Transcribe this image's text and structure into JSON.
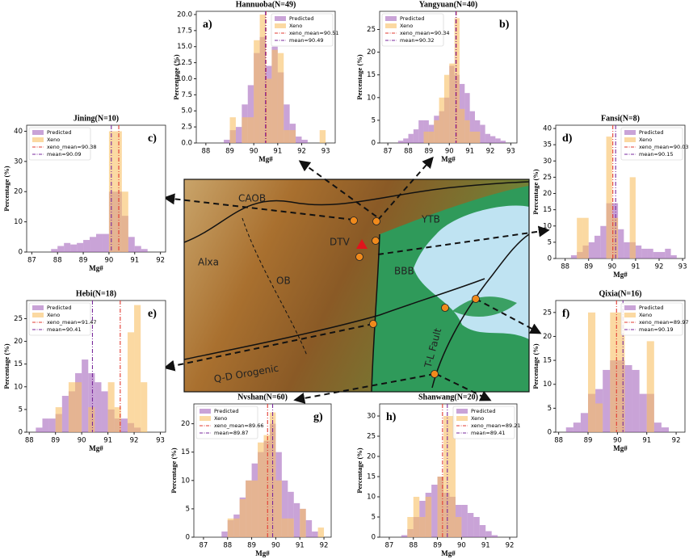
{
  "chart_data": [
    {
      "type": "histogram",
      "title": "Hannuoba(N=49)",
      "panel_label": "a)",
      "xlabel": "Mg#",
      "ylabel": "Percentage (%)",
      "legend": "upper right",
      "bins": [
        88.75,
        89.0,
        89.25,
        89.5,
        89.75,
        90.0,
        90.25,
        90.5,
        90.75,
        91.0,
        91.25,
        91.5,
        91.75,
        92.0,
        92.25,
        92.5,
        92.75,
        93.0,
        93.25
      ],
      "series": [
        {
          "name": "Predicted",
          "color": "#a565bd",
          "values": [
            0.5,
            2,
            2.5,
            6,
            9,
            14,
            16.5,
            12,
            15,
            11,
            6,
            3,
            1,
            0.5,
            0,
            0,
            0,
            0
          ]
        },
        {
          "name": "Xeno",
          "color": "#f8c064",
          "values": [
            0,
            4,
            0,
            4,
            4,
            16,
            20,
            10,
            14.5,
            14,
            2,
            2,
            0,
            0,
            0,
            0,
            2,
            0
          ]
        }
      ],
      "reference_lines": [
        {
          "name": "xeno_mean=90.51",
          "value": 90.51,
          "color": "#e23b32"
        },
        {
          "name": "mean=90.49",
          "value": 90.49,
          "color": "#7a2a9c"
        }
      ],
      "xlim": [
        87.6,
        93.4
      ],
      "xticks": [
        88,
        89,
        90,
        91,
        92,
        93
      ],
      "ylim": [
        0,
        20.5
      ],
      "yticks": [
        {
          "value": 0,
          "label": "0.0"
        },
        2.5,
        {
          "value": 5,
          "label": "5.0"
        },
        7.5,
        {
          "value": 10,
          "label": "10.0"
        },
        12.5,
        {
          "value": 15,
          "label": "15.0"
        },
        17.5,
        {
          "value": 20,
          "label": "20.0"
        }
      ]
    },
    {
      "type": "histogram",
      "title": "Yangyuan(N=40)",
      "panel_label": "b)",
      "xlabel": "Mg#",
      "ylabel": "Percentage (%)",
      "legend": "upper left",
      "bins": [
        87.5,
        87.75,
        88.0,
        88.25,
        88.5,
        88.75,
        89.0,
        89.25,
        89.5,
        89.75,
        90.0,
        90.25,
        90.5,
        90.75,
        91.0,
        91.25,
        91.5,
        91.75,
        92.0,
        92.25,
        92.5,
        92.75,
        93.0
      ],
      "series": [
        {
          "name": "Predicted",
          "color": "#a565bd",
          "values": [
            0.5,
            1,
            2,
            3,
            5,
            5,
            4,
            6,
            7,
            10,
            17,
            15,
            13,
            11,
            7,
            5,
            4,
            2,
            1.5,
            1,
            0.5,
            0
          ]
        },
        {
          "name": "Xeno",
          "color": "#f8c064",
          "values": [
            0,
            0,
            0,
            0,
            0,
            2.5,
            2.5,
            5,
            10,
            15,
            17.5,
            27.5,
            7.5,
            5,
            2.5,
            2.5,
            0,
            0,
            0,
            0,
            0,
            0
          ]
        }
      ],
      "reference_lines": [
        {
          "name": "xeno_mean=90.34",
          "value": 90.34,
          "color": "#e23b32"
        },
        {
          "name": "mean=90.32",
          "value": 90.32,
          "color": "#7a2a9c"
        }
      ],
      "xlim": [
        86.6,
        93.3
      ],
      "xticks": [
        87,
        88,
        89,
        90,
        91,
        92,
        93
      ],
      "ylim": [
        0,
        29
      ],
      "yticks": [
        0,
        5,
        10,
        15,
        20,
        25
      ]
    },
    {
      "type": "histogram",
      "title": "Jining(N=10)",
      "panel_label": "c)",
      "xlabel": "Mg#",
      "ylabel": "Percentage (%)",
      "legend": "upper left",
      "bins": [
        87.75,
        88.0,
        88.25,
        88.5,
        88.75,
        89.0,
        89.25,
        89.5,
        89.75,
        90.0,
        90.25,
        90.5,
        90.75,
        91.0,
        91.25,
        91.5
      ],
      "series": [
        {
          "name": "Predicted",
          "color": "#a565bd",
          "values": [
            1,
            2,
            3,
            2.5,
            3,
            4,
            5,
            6,
            6,
            20,
            20,
            12,
            5,
            2,
            1
          ]
        },
        {
          "name": "Xeno",
          "color": "#f8c064",
          "values": [
            0,
            0,
            0,
            0,
            0,
            0,
            0,
            0,
            0,
            40,
            40,
            20,
            0,
            0,
            0
          ]
        }
      ],
      "reference_lines": [
        {
          "name": "xeno_mean=90.38",
          "value": 90.38,
          "color": "#e23b32"
        },
        {
          "name": "mean=90.09",
          "value": 90.09,
          "color": "#7a2a9c"
        }
      ],
      "xlim": [
        86.8,
        92.2
      ],
      "xticks": [
        87,
        88,
        89,
        90,
        91,
        92
      ],
      "ylim": [
        0,
        42
      ],
      "yticks": [
        0,
        10,
        20,
        30,
        40
      ]
    },
    {
      "type": "histogram",
      "title": "Fansi(N=8)",
      "panel_label": "d)",
      "xlabel": "Mg#",
      "ylabel": "Percentage (%)",
      "legend": "upper right",
      "bins": [
        88.25,
        88.5,
        88.75,
        89.0,
        89.25,
        89.5,
        89.75,
        90.0,
        90.25,
        90.5,
        90.75,
        91.0,
        91.25,
        91.5,
        91.75,
        92.0,
        92.25,
        92.5,
        92.75
      ],
      "series": [
        {
          "name": "Predicted",
          "color": "#a565bd",
          "values": [
            1,
            2,
            4,
            5,
            7,
            10,
            17,
            17,
            9,
            5,
            5,
            4,
            3,
            3,
            2,
            2,
            3,
            1
          ]
        },
        {
          "name": "Xeno",
          "color": "#f8c064",
          "values": [
            0,
            12.5,
            12.5,
            0,
            0,
            0,
            37.5,
            12.5,
            0,
            0,
            25,
            0,
            0,
            0,
            0,
            0,
            0,
            0
          ]
        }
      ],
      "reference_lines": [
        {
          "name": "xeno_mean=90.03",
          "value": 90.03,
          "color": "#e23b32"
        },
        {
          "name": "mean=90.15",
          "value": 90.15,
          "color": "#7a2a9c"
        }
      ],
      "xlim": [
        87.6,
        93.1
      ],
      "xticks": [
        88,
        89,
        90,
        91,
        92,
        93
      ],
      "ylim": [
        0,
        41
      ],
      "yticks": [
        0,
        5,
        10,
        15,
        20,
        25,
        30,
        35,
        40
      ]
    },
    {
      "type": "histogram",
      "title": "Hebi(N=18)",
      "panel_label": "e)",
      "xlabel": "Mg#",
      "ylabel": "Percentage (%)",
      "legend": "upper left",
      "bins": [
        88.25,
        88.5,
        88.75,
        89.0,
        89.25,
        89.5,
        89.75,
        90.0,
        90.25,
        90.5,
        90.75,
        91.0,
        91.25,
        91.5,
        91.75,
        92.0,
        92.25,
        92.5
      ],
      "series": [
        {
          "name": "Predicted",
          "color": "#a565bd",
          "values": [
            1,
            3,
            3,
            4,
            8,
            9,
            13,
            16,
            13,
            11,
            9,
            5,
            3,
            3,
            2,
            1,
            0
          ]
        },
        {
          "name": "Xeno",
          "color": "#f8c064",
          "values": [
            0,
            0,
            0,
            5.5,
            0,
            11,
            11,
            0,
            5.5,
            0,
            0,
            11,
            5.5,
            0,
            22,
            28,
            11
          ]
        }
      ],
      "reference_lines": [
        {
          "name": "xeno_mean=91.47",
          "value": 91.47,
          "color": "#e23b32"
        },
        {
          "name": "mean=90.41",
          "value": 90.41,
          "color": "#7a2a9c"
        }
      ],
      "xlim": [
        87.9,
        93.2
      ],
      "xticks": [
        88,
        89,
        90,
        91,
        92,
        93
      ],
      "ylim": [
        0,
        29
      ],
      "yticks": [
        0,
        5,
        10,
        15,
        20,
        25
      ]
    },
    {
      "type": "histogram",
      "title": "Qixia(N=16)",
      "panel_label": "f)",
      "xlabel": "Mg#",
      "ylabel": "Percentage (%)",
      "legend": "upper right",
      "bins": [
        88.25,
        88.5,
        88.75,
        89.0,
        89.25,
        89.5,
        89.75,
        90.0,
        90.25,
        90.5,
        90.75,
        91.0,
        91.25,
        91.5,
        91.75
      ],
      "series": [
        {
          "name": "Predicted",
          "color": "#a565bd",
          "values": [
            1,
            2,
            4,
            8,
            9,
            13,
            15,
            15,
            14,
            13,
            8,
            8,
            2,
            1
          ]
        },
        {
          "name": "Xeno",
          "color": "#f8c064",
          "values": [
            0,
            0,
            0,
            25,
            6,
            0,
            25,
            25,
            0,
            0,
            0,
            19,
            0,
            0
          ]
        }
      ],
      "reference_lines": [
        {
          "name": "xeno_mean=89.97",
          "value": 89.97,
          "color": "#e23b32"
        },
        {
          "name": "mean=90.19",
          "value": 90.19,
          "color": "#7a2a9c"
        }
      ],
      "xlim": [
        87.9,
        92.3
      ],
      "xticks": [
        88,
        89,
        90,
        91,
        92
      ],
      "ylim": [
        0,
        27.5
      ],
      "yticks": [
        0,
        5,
        10,
        15,
        20,
        25
      ]
    },
    {
      "type": "histogram",
      "title": "Nvshan(N=60)",
      "panel_label": "g)",
      "xlabel": "Mg#",
      "ylabel": "Percentage (%)",
      "legend": "upper left",
      "bins": [
        87.75,
        88.0,
        88.25,
        88.5,
        88.75,
        89.0,
        89.25,
        89.5,
        89.75,
        90.0,
        90.25,
        90.5,
        90.75,
        91.0,
        91.25,
        91.5,
        91.75,
        92.0
      ],
      "series": [
        {
          "name": "Predicted",
          "color": "#a565bd",
          "values": [
            1,
            3,
            4,
            7,
            10,
            13,
            15,
            17,
            20,
            15,
            10,
            8,
            6,
            5,
            3,
            1,
            0
          ]
        },
        {
          "name": "Xeno",
          "color": "#f8c064",
          "values": [
            0,
            3.3,
            3.3,
            6.7,
            10,
            10,
            16.7,
            18,
            22,
            10,
            3.3,
            3.3,
            0,
            5,
            0,
            0,
            1.7
          ]
        }
      ],
      "reference_lines": [
        {
          "name": "xeno_mean=89.66",
          "value": 89.66,
          "color": "#e23b32"
        },
        {
          "name": "mean=89.87",
          "value": 89.87,
          "color": "#7a2a9c"
        }
      ],
      "xlim": [
        86.6,
        92.3
      ],
      "xticks": [
        87,
        88,
        89,
        90,
        91,
        92
      ],
      "ylim": [
        0,
        23.5
      ],
      "yticks": [
        0,
        5,
        10,
        15,
        20
      ]
    },
    {
      "type": "histogram",
      "title": "Shanwang(N=20)",
      "panel_label": "h)",
      "xlabel": "Mg#",
      "ylabel": "Percentage (%)",
      "legend": "upper right",
      "bins": [
        87.5,
        87.75,
        88.0,
        88.25,
        88.5,
        88.75,
        89.0,
        89.25,
        89.5,
        89.75,
        90.0,
        90.25,
        90.5,
        90.75,
        91.0,
        91.25,
        91.5
      ],
      "series": [
        {
          "name": "Predicted",
          "color": "#a565bd",
          "values": [
            0.5,
            2,
            5,
            9,
            11,
            13,
            15,
            11,
            10,
            8,
            8,
            6,
            5,
            3,
            1.5,
            0.5
          ]
        },
        {
          "name": "Xeno",
          "color": "#f8c064",
          "values": [
            0,
            5,
            10,
            5,
            10,
            0,
            15,
            30,
            30,
            5,
            0,
            0,
            0,
            0,
            0,
            0
          ]
        }
      ],
      "reference_lines": [
        {
          "name": "xeno_mean=89.21",
          "value": 89.21,
          "color": "#e23b32"
        },
        {
          "name": "mean=89.41",
          "value": 89.41,
          "color": "#7a2a9c"
        }
      ],
      "xlim": [
        86.6,
        92.3
      ],
      "xticks": [
        87,
        88,
        89,
        90,
        91,
        92
      ],
      "ylim": [
        0,
        33
      ],
      "yticks": [
        0,
        5,
        10,
        15,
        20,
        25,
        30
      ]
    }
  ],
  "map": {
    "labels": [
      "CAOB",
      "YTB",
      "DTV",
      "Alxa",
      "OB",
      "BBB",
      "Q-D Orogenic",
      "T-L Fault"
    ]
  }
}
